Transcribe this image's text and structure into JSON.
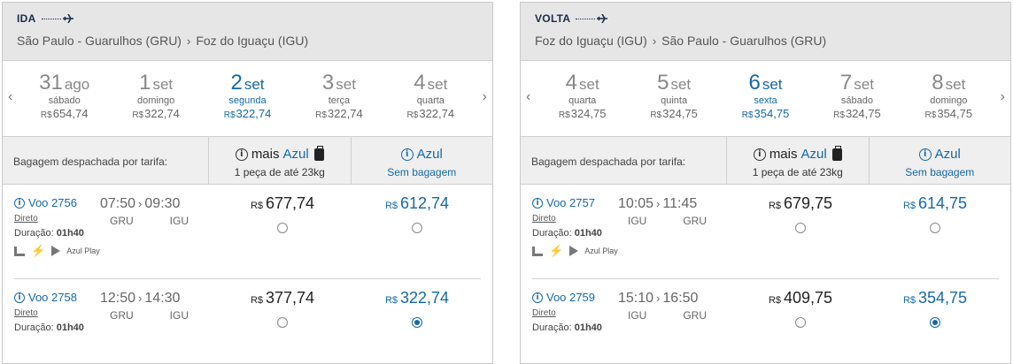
{
  "panels": [
    {
      "trip_type": "IDA",
      "origin": "São Paulo - Guarulhos (GRU)",
      "destination": "Foz do Iguaçu (IGU)",
      "dates": [
        {
          "day": "31",
          "month": "ago",
          "weekday": "sábado",
          "currency": "R$",
          "price": "654,74",
          "active": false
        },
        {
          "day": "1",
          "month": "set",
          "weekday": "domingo",
          "currency": "R$",
          "price": "322,74",
          "active": false
        },
        {
          "day": "2",
          "month": "set",
          "weekday": "segunda",
          "currency": "R$",
          "price": "322,74",
          "active": true
        },
        {
          "day": "3",
          "month": "set",
          "weekday": "terça",
          "currency": "R$",
          "price": "322,74",
          "active": false
        },
        {
          "day": "4",
          "month": "set",
          "weekday": "quarta",
          "currency": "R$",
          "price": "322,74",
          "active": false
        }
      ],
      "fare_header": {
        "label": "Bagagem despachada por tarifa:",
        "col1_prefix": "mais",
        "col1_brand": "Azul",
        "col1_sub": "1 peça de até 23kg",
        "col2_brand": "Azul",
        "col2_sub": "Sem bagagem"
      },
      "flights": [
        {
          "voo": "Voo 2756",
          "dep": "07:50",
          "arr": "09:30",
          "from": "GRU",
          "to": "IGU",
          "tipo": "Direto",
          "dur_label": "Duração:",
          "dur": "01h40",
          "amenities": true,
          "amen_text": "Azul Play",
          "currency": "R$",
          "price1": "677,74",
          "price2": "612,74",
          "selected": 0
        },
        {
          "voo": "Voo 2758",
          "dep": "12:50",
          "arr": "14:30",
          "from": "GRU",
          "to": "IGU",
          "tipo": "Direto",
          "dur_label": "Duração:",
          "dur": "01h40",
          "amenities": false,
          "amen_text": "",
          "currency": "R$",
          "price1": "377,74",
          "price2": "322,74",
          "selected": 2
        }
      ]
    },
    {
      "trip_type": "VOLTA",
      "origin": "Foz do Iguaçu (IGU)",
      "destination": "São Paulo - Guarulhos (GRU)",
      "dates": [
        {
          "day": "4",
          "month": "set",
          "weekday": "quarta",
          "currency": "R$",
          "price": "324,75",
          "active": false
        },
        {
          "day": "5",
          "month": "set",
          "weekday": "quinta",
          "currency": "R$",
          "price": "324,75",
          "active": false
        },
        {
          "day": "6",
          "month": "set",
          "weekday": "sexta",
          "currency": "R$",
          "price": "354,75",
          "active": true
        },
        {
          "day": "7",
          "month": "set",
          "weekday": "sábado",
          "currency": "R$",
          "price": "324,75",
          "active": false
        },
        {
          "day": "8",
          "month": "set",
          "weekday": "domingo",
          "currency": "R$",
          "price": "354,75",
          "active": false
        }
      ],
      "fare_header": {
        "label": "Bagagem despachada por tarifa:",
        "col1_prefix": "mais",
        "col1_brand": "Azul",
        "col1_sub": "1 peça de até 23kg",
        "col2_brand": "Azul",
        "col2_sub": "Sem bagagem"
      },
      "flights": [
        {
          "voo": "Voo 2757",
          "dep": "10:05",
          "arr": "11:45",
          "from": "IGU",
          "to": "GRU",
          "tipo": "Direto",
          "dur_label": "Duração:",
          "dur": "01h40",
          "amenities": true,
          "amen_text": "Azul Play",
          "currency": "R$",
          "price1": "679,75",
          "price2": "614,75",
          "selected": 0
        },
        {
          "voo": "Voo 2759",
          "dep": "15:10",
          "arr": "16:50",
          "from": "IGU",
          "to": "GRU",
          "tipo": "Direto",
          "dur_label": "Duração:",
          "dur": "01h40",
          "amenities": false,
          "amen_text": "",
          "currency": "R$",
          "price1": "409,75",
          "price2": "354,75",
          "selected": 2
        }
      ]
    }
  ],
  "colors": {
    "accent": "#1569a8",
    "header_bg": "#e6e6e6",
    "text": "#333333"
  },
  "icons": {
    "plane": "plane-icon",
    "info": "info-icon",
    "bag": "bag-icon",
    "seat": "seat-icon",
    "plug": "plug-icon",
    "play": "play-icon",
    "prev": "chevron-left-icon",
    "next": "chevron-right-icon"
  }
}
